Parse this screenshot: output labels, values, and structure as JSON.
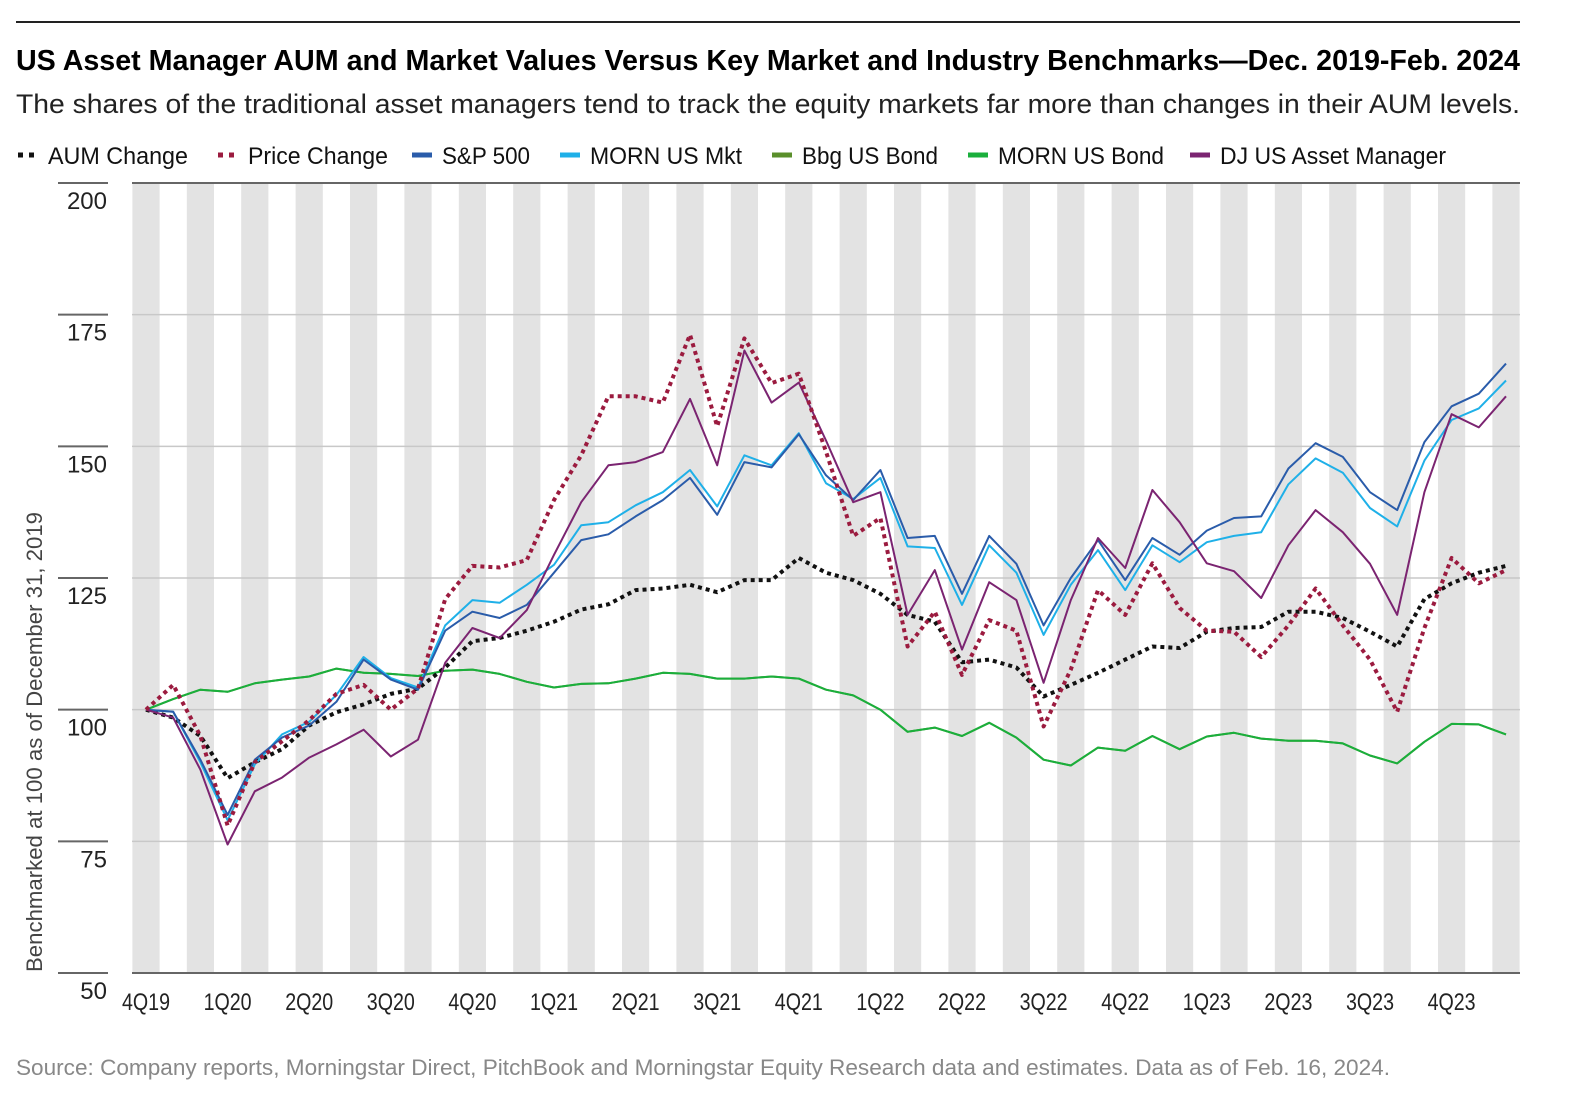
{
  "title": "US Asset Manager AUM and Market Values Versus Key Market and Industry Benchmarks—Dec. 2019-Feb. 2024",
  "subtitle": "The shares of the traditional asset managers tend to track the equity markets far more than changes in their AUM levels.",
  "source": "Source: Company reports, Morningstar Direct, PitchBook and Morningstar Equity Research data and estimates. Data as of Feb. 16, 2024.",
  "chart_data": {
    "type": "line",
    "title": "US Asset Manager AUM and Market Values Versus Key Market and Industry Benchmarks—Dec. 2019-Feb. 2024",
    "ylabel": "Benchmarked at 100 as of December 31, 2019",
    "xlabel": "",
    "ylim": [
      50,
      200
    ],
    "yticks": [
      "50",
      "75",
      "100",
      "125",
      "150",
      "175",
      "200"
    ],
    "xticks": [
      "4Q19",
      "1Q20",
      "2Q20",
      "3Q20",
      "4Q20",
      "1Q21",
      "2Q21",
      "3Q21",
      "4Q21",
      "1Q22",
      "2Q22",
      "3Q22",
      "4Q22",
      "1Q23",
      "2Q23",
      "3Q23",
      "4Q23"
    ],
    "x_frequency": "monthly, Dec. 2019 - Feb. 2024",
    "grid": "horizontal",
    "alternating_month_shading": true,
    "legend_position": "top",
    "series": [
      {
        "name": "AUM Change",
        "color": "#111111",
        "style": "dotted",
        "values": [
          100,
          98.5,
          95,
          87,
          90,
          92.5,
          97,
          99.5,
          101,
          103,
          104,
          108,
          113,
          113.6,
          115,
          116.7,
          119,
          120,
          122.7,
          123,
          123.7,
          122.3,
          124.6,
          124.6,
          128.8,
          126,
          124.6,
          122,
          118,
          116.7,
          109,
          109.5,
          108,
          102.5,
          104.7,
          107,
          109.5,
          112,
          111.7,
          114.8,
          115.5,
          115.7,
          118.6,
          118.6,
          117.4,
          114.8,
          112,
          121,
          124,
          126,
          127.3
        ]
      },
      {
        "name": "Price Change",
        "color": "#9b1b3f",
        "style": "dotted",
        "values": [
          100,
          104.7,
          95,
          78,
          90,
          94,
          98,
          103,
          104.7,
          100,
          104,
          121,
          127.3,
          127,
          128.4,
          139.8,
          148.3,
          159.5,
          159.5,
          158.3,
          171.2,
          153.8,
          170.5,
          162,
          163.8,
          149,
          133,
          136.4,
          112,
          118.6,
          106.6,
          117,
          115,
          96.8,
          107.6,
          122.7,
          118,
          127.8,
          119.3,
          115,
          114.8,
          110,
          116,
          123,
          116,
          109.5,
          99.6,
          115.5,
          128.8,
          124,
          126.5
        ]
      },
      {
        "name": "S&P 500",
        "color": "#2a5caa",
        "style": "solid",
        "values": [
          100,
          99.6,
          90.5,
          80,
          90.5,
          94.7,
          97,
          101.5,
          109.5,
          105.7,
          103.8,
          115,
          118.6,
          117.4,
          119.9,
          126,
          132.2,
          133.3,
          136.7,
          139.8,
          144,
          137,
          147,
          146,
          152.3,
          144.5,
          139.8,
          145.5,
          132.6,
          133,
          122,
          133,
          127.7,
          116,
          125,
          132.2,
          124.6,
          132.6,
          129.4,
          134,
          136.4,
          136.7,
          145.8,
          150.6,
          148,
          141.3,
          137.9,
          150.8,
          157.6,
          160,
          165.7
        ]
      },
      {
        "name": "MORN US Mkt",
        "color": "#1fb0e8",
        "style": "solid",
        "values": [
          100,
          99.6,
          90,
          79,
          89.6,
          95.3,
          97.7,
          102.8,
          110,
          106,
          104.2,
          116,
          120.8,
          120.3,
          123.7,
          127.5,
          135,
          135.6,
          138.8,
          141.3,
          145.5,
          138.6,
          148.3,
          146.4,
          152.5,
          143,
          140,
          144,
          131,
          130.7,
          119.9,
          131.2,
          126,
          114.2,
          123.7,
          130.3,
          122.7,
          131.2,
          128,
          131.8,
          133,
          133.7,
          142.8,
          147.7,
          145,
          138.3,
          134.8,
          147.3,
          155,
          157.2,
          162.5
        ]
      },
      {
        "name": "Bbg US Bond",
        "color": "#5a8f2b",
        "style": "solid",
        "values": [
          100,
          102,
          103.8,
          103.4,
          105,
          105.7,
          106.3,
          107.8,
          107,
          106.8,
          106.4,
          107.4,
          107.6,
          106.8,
          105.3,
          104.2,
          104.9,
          105,
          105.9,
          107,
          106.8,
          105.9,
          105.9,
          106.3,
          105.9,
          103.8,
          102.7,
          100,
          95.8,
          96.6,
          95,
          97.5,
          94.7,
          90.5,
          89.4,
          92.8,
          92.2,
          95,
          92.5,
          94.9,
          95.6,
          94.5,
          94.1,
          94.1,
          93.6,
          91.3,
          89.8,
          93.9,
          97.3,
          97.2,
          95.3
        ]
      },
      {
        "name": "MORN US Bond",
        "color": "#1aaf3c",
        "style": "solid",
        "values": [
          100,
          102,
          103.8,
          103.4,
          105,
          105.7,
          106.3,
          107.8,
          107,
          106.8,
          106.4,
          107.4,
          107.6,
          106.8,
          105.3,
          104.2,
          104.9,
          105,
          105.9,
          107,
          106.8,
          105.9,
          105.9,
          106.3,
          105.9,
          103.8,
          102.7,
          100,
          95.8,
          96.6,
          95,
          97.5,
          94.7,
          90.5,
          89.4,
          92.8,
          92.2,
          95,
          92.5,
          94.9,
          95.6,
          94.5,
          94.1,
          94.1,
          93.6,
          91.3,
          89.8,
          93.9,
          97.3,
          97.2,
          95.3
        ]
      },
      {
        "name": "DJ US Asset Manager",
        "color": "#7b2471",
        "style": "solid",
        "values": [
          100,
          98.5,
          88.6,
          74.4,
          84.5,
          87.1,
          90.9,
          93.4,
          96.2,
          91.1,
          94.3,
          108.9,
          115.5,
          113.6,
          118.9,
          129.4,
          139.4,
          146.4,
          147,
          148.9,
          159,
          146.4,
          168.2,
          158.3,
          162.1,
          151.1,
          139.4,
          141.3,
          118,
          126.5,
          111.4,
          124.2,
          120.8,
          105.1,
          120.8,
          132.6,
          126.9,
          141.7,
          135.6,
          127.8,
          126.3,
          121.2,
          131.2,
          137.9,
          133.7,
          127.7,
          118,
          141.3,
          156.1,
          153.6,
          159.5
        ]
      }
    ]
  }
}
